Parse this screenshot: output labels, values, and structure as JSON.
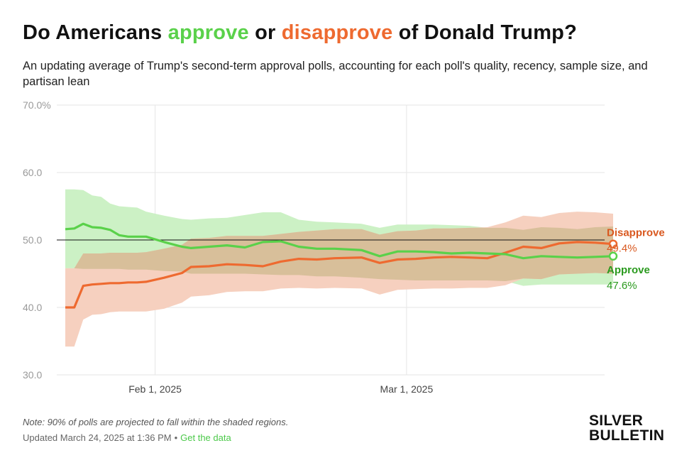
{
  "title": {
    "prefix": "Do Americans ",
    "approve_word": "approve",
    "middle": " or ",
    "disapprove_word": "disapprove",
    "suffix": " of Donald Trump?"
  },
  "subtitle": "An updating average of Trump's second-term approval polls, accounting for each poll's quality, recency, sample size, and partisan lean",
  "footer": {
    "note": "Note: 90% of polls are projected to fall within the shaded regions.",
    "updated": "Updated March 24, 2025 at 1:36 PM",
    "separator": "•",
    "link": "Get the data"
  },
  "logo": {
    "line1": "SILVER",
    "line2": "BULLETIN"
  },
  "colors": {
    "approve": "#5ad14a",
    "approve_band": "#c9f0c2",
    "disapprove": "#ee6a30",
    "disapprove_band": "#f6cdbc",
    "overlap_band": "#d5bc96",
    "approve_label": "#2a9a1e",
    "disapprove_label": "#d9581f"
  },
  "chart_data": {
    "type": "line",
    "x_start": "2025-01-22",
    "x_end": "2025-03-24",
    "ylim": [
      30,
      70
    ],
    "yticks": [
      "70.0%",
      "60.0",
      "50.0",
      "40.0",
      "30.0"
    ],
    "ytick_values": [
      70,
      60,
      50,
      40,
      30
    ],
    "xticks": [
      {
        "date": "2025-02-01",
        "label": "Feb 1, 2025"
      },
      {
        "date": "2025-03-01",
        "label": "Mar 1, 2025"
      }
    ],
    "reference_line": 50,
    "grid": true,
    "series": [
      {
        "name": "Approve",
        "final_label": "47.6%",
        "dates": [
          "2025-01-22",
          "2025-01-23",
          "2025-01-24",
          "2025-01-25",
          "2025-01-26",
          "2025-01-27",
          "2025-01-28",
          "2025-01-29",
          "2025-01-30",
          "2025-01-31",
          "2025-02-02",
          "2025-02-04",
          "2025-02-05",
          "2025-02-07",
          "2025-02-09",
          "2025-02-11",
          "2025-02-13",
          "2025-02-15",
          "2025-02-17",
          "2025-02-19",
          "2025-02-21",
          "2025-02-24",
          "2025-02-26",
          "2025-02-28",
          "2025-03-02",
          "2025-03-04",
          "2025-03-06",
          "2025-03-08",
          "2025-03-10",
          "2025-03-12",
          "2025-03-14",
          "2025-03-16",
          "2025-03-18",
          "2025-03-20",
          "2025-03-22",
          "2025-03-24"
        ],
        "values": [
          51.6,
          51.7,
          52.4,
          51.9,
          51.8,
          51.5,
          50.7,
          50.5,
          50.5,
          50.5,
          49.7,
          49.0,
          48.8,
          49.0,
          49.2,
          48.9,
          49.7,
          49.8,
          49.0,
          48.7,
          48.7,
          48.5,
          47.6,
          48.3,
          48.3,
          48.2,
          48.0,
          48.1,
          48.0,
          47.9,
          47.3,
          47.6,
          47.5,
          47.4,
          47.5,
          47.6
        ],
        "lower": [
          45.8,
          45.8,
          45.7,
          45.7,
          45.7,
          45.7,
          45.7,
          45.6,
          45.6,
          45.6,
          45.4,
          45.3,
          45.0,
          45.0,
          45.0,
          45.0,
          44.9,
          44.8,
          44.8,
          44.6,
          44.6,
          44.4,
          44.2,
          44.1,
          44.0,
          44.0,
          44.0,
          44.0,
          44.0,
          43.9,
          43.2,
          43.4,
          43.4,
          43.4,
          43.4,
          43.4
        ],
        "upper": [
          57.5,
          57.5,
          57.4,
          56.6,
          56.4,
          55.4,
          55.0,
          54.9,
          54.8,
          54.2,
          53.6,
          53.1,
          53.0,
          53.2,
          53.3,
          53.7,
          54.1,
          54.1,
          53.0,
          52.7,
          52.6,
          52.4,
          51.8,
          52.3,
          52.3,
          52.3,
          52.2,
          52.1,
          51.8,
          51.8,
          51.5,
          51.9,
          51.8,
          51.6,
          51.9,
          52.0
        ]
      },
      {
        "name": "Disapprove",
        "final_label": "49.4%",
        "dates": [
          "2025-01-22",
          "2025-01-23",
          "2025-01-24",
          "2025-01-25",
          "2025-01-26",
          "2025-01-27",
          "2025-01-28",
          "2025-01-29",
          "2025-01-30",
          "2025-01-31",
          "2025-02-02",
          "2025-02-04",
          "2025-02-05",
          "2025-02-07",
          "2025-02-09",
          "2025-02-11",
          "2025-02-13",
          "2025-02-15",
          "2025-02-17",
          "2025-02-19",
          "2025-02-21",
          "2025-02-24",
          "2025-02-26",
          "2025-02-28",
          "2025-03-02",
          "2025-03-04",
          "2025-03-06",
          "2025-03-08",
          "2025-03-10",
          "2025-03-12",
          "2025-03-14",
          "2025-03-16",
          "2025-03-18",
          "2025-03-20",
          "2025-03-22",
          "2025-03-24"
        ],
        "values": [
          40.0,
          40.0,
          43.2,
          43.4,
          43.5,
          43.6,
          43.6,
          43.7,
          43.7,
          43.8,
          44.4,
          45.1,
          46.0,
          46.1,
          46.4,
          46.3,
          46.1,
          46.8,
          47.2,
          47.1,
          47.3,
          47.4,
          46.6,
          47.1,
          47.2,
          47.4,
          47.5,
          47.4,
          47.3,
          48.1,
          49.0,
          48.8,
          49.5,
          49.7,
          49.6,
          49.4
        ],
        "lower": [
          34.2,
          34.2,
          38.2,
          38.9,
          39.0,
          39.3,
          39.4,
          39.4,
          39.4,
          39.4,
          39.8,
          40.7,
          41.6,
          41.8,
          42.3,
          42.4,
          42.4,
          42.8,
          42.9,
          42.8,
          42.9,
          42.8,
          41.9,
          42.6,
          42.7,
          42.8,
          42.8,
          42.9,
          42.9,
          43.3,
          44.3,
          44.2,
          44.9,
          45.0,
          45.1,
          45.0
        ],
        "upper": [
          45.8,
          45.8,
          48.0,
          48.0,
          48.0,
          48.1,
          48.1,
          48.1,
          48.1,
          48.2,
          48.7,
          49.3,
          50.2,
          50.3,
          50.6,
          50.6,
          50.6,
          50.9,
          51.2,
          51.4,
          51.6,
          51.6,
          50.8,
          51.3,
          51.4,
          51.7,
          51.7,
          51.8,
          51.9,
          52.6,
          53.6,
          53.4,
          54.0,
          54.2,
          54.1,
          53.9
        ]
      }
    ]
  }
}
